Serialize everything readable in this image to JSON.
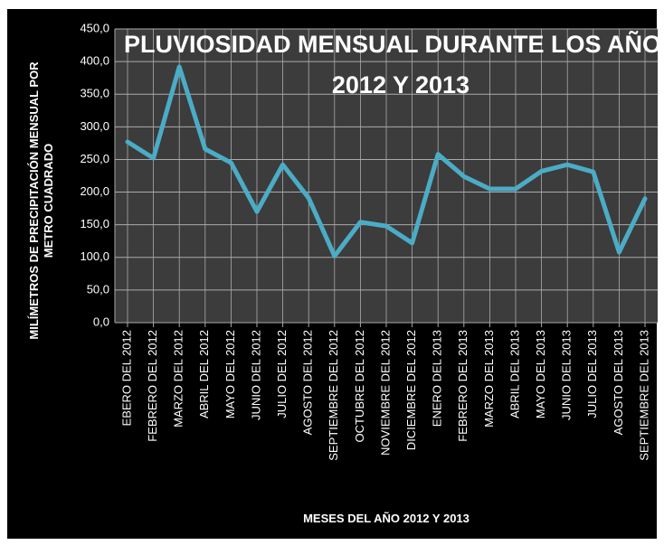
{
  "chart_data": {
    "type": "line",
    "title": [
      "PLUVIOSIDAD MENSUAL DURANTE LOS AÑOS",
      "2012 Y 2013"
    ],
    "y_label": [
      "MILÍMETROS DE PRECIPITACIÓN MENSUAL POR",
      "METRO CUADRADO"
    ],
    "x_label": "MESES DEL AÑO 2012 Y 2013",
    "categories": [
      "EBERO DEL 2012",
      "FEBRERO DEL 2012",
      "MARZO DEL 2012",
      "ABRIL DEL 2012",
      "MAYO DEL 2012",
      "JUNIO DEL 2012",
      "JULIO DEL 2012",
      "AGOSTO DEL 2012",
      "SEPTIEMBRE DEL 2012",
      "OCTUBRE DEL 2012",
      "NOVIEMBRE DEL 2012",
      "DICIEMBRE DEL 2012",
      "ENERO DEL 2013",
      "FEBRERO DEL 2013",
      "MARZO DEL 2013",
      "ABRIL DEL 2013",
      "MAYO DEL 2013",
      "JUNIO DEL 2013",
      "JULIO DEL 2013",
      "AGOSTO DEL 2013",
      "SEPTIEMBRE DEL 2013"
    ],
    "values": [
      277,
      252,
      392,
      266,
      245,
      170,
      242,
      191,
      102,
      154,
      148,
      122,
      258,
      224,
      205,
      205,
      232,
      242,
      231,
      108,
      190
    ],
    "color": "#4bacc6",
    "ylim": [
      0,
      450
    ],
    "yticks": [
      {
        "value": 0,
        "label": "0,0"
      },
      {
        "value": 50,
        "label": "50,0"
      },
      {
        "value": 100,
        "label": "100,0"
      },
      {
        "value": 150,
        "label": "150,0"
      },
      {
        "value": 200,
        "label": "200,0"
      },
      {
        "value": 250,
        "label": "250,0"
      },
      {
        "value": 300,
        "label": "300,0"
      },
      {
        "value": 350,
        "label": "350,0"
      },
      {
        "value": 400,
        "label": "400,0"
      },
      {
        "value": 450,
        "label": "450,0"
      }
    ],
    "grid": true
  }
}
